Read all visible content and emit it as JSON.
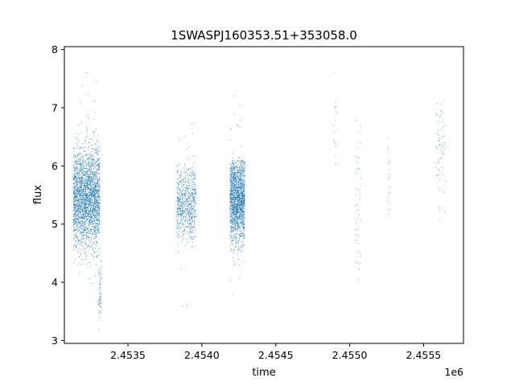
{
  "chart_data": {
    "type": "scatter",
    "title": "1SWASPJ160353.51+353058.0",
    "xlabel": "time",
    "ylabel": "flux",
    "x_offset_label": "1e6",
    "xlim": [
      2453070,
      2455770
    ],
    "ylim": [
      2.95,
      8.05
    ],
    "x_ticks": [
      2453500,
      2454000,
      2454500,
      2455000,
      2455500
    ],
    "x_tick_labels": [
      "2.4535",
      "2.4540",
      "2.4545",
      "2.4550",
      "2.4555"
    ],
    "y_ticks": [
      3,
      4,
      5,
      6,
      7,
      8
    ],
    "y_tick_labels": [
      "3",
      "4",
      "5",
      "6",
      "7",
      "8"
    ],
    "grid": false,
    "legend": "none",
    "marker_color": "#1f77b4",
    "clusters": [
      {
        "x_range": [
          2453130,
          2453310
        ],
        "n": 2600,
        "y_mean": 5.45,
        "y_sd": 0.42,
        "y_min": 4.3,
        "y_max": 6.6
      },
      {
        "x_range": [
          2453140,
          2453300
        ],
        "n": 120,
        "y_mean": 5.45,
        "y_sd": 0.85,
        "y_min": 3.9,
        "y_max": 7.75
      },
      {
        "x_range": [
          2453300,
          2453320
        ],
        "n": 70,
        "y_mean": 3.75,
        "y_sd": 0.3,
        "y_min": 3.15,
        "y_max": 4.5
      },
      {
        "x_range": [
          2453830,
          2453960
        ],
        "n": 750,
        "y_mean": 5.35,
        "y_sd": 0.32,
        "y_min": 4.6,
        "y_max": 6.1
      },
      {
        "x_range": [
          2453830,
          2453960
        ],
        "n": 50,
        "y_mean": 5.5,
        "y_sd": 0.7,
        "y_min": 3.15,
        "y_max": 7.3
      },
      {
        "x_range": [
          2454190,
          2454290
        ],
        "n": 1800,
        "y_mean": 5.45,
        "y_sd": 0.38,
        "y_min": 4.5,
        "y_max": 6.1
      },
      {
        "x_range": [
          2454190,
          2454300
        ],
        "n": 90,
        "y_mean": 5.5,
        "y_sd": 0.8,
        "y_min": 3.5,
        "y_max": 7.8
      },
      {
        "x_range": [
          2454890,
          2454910
        ],
        "n": 18,
        "y_mean": 6.5,
        "y_sd": 0.45,
        "y_min": 6.0,
        "y_max": 7.7
      },
      {
        "x_range": [
          2455040,
          2455075
        ],
        "n": 45,
        "y_mean": 5.4,
        "y_sd": 0.8,
        "y_min": 3.85,
        "y_max": 6.8
      },
      {
        "x_range": [
          2455255,
          2455275
        ],
        "n": 20,
        "y_mean": 5.8,
        "y_sd": 0.45,
        "y_min": 5.1,
        "y_max": 6.9
      },
      {
        "x_range": [
          2455580,
          2455650
        ],
        "n": 70,
        "y_mean": 6.25,
        "y_sd": 0.45,
        "y_min": 5.0,
        "y_max": 7.5
      }
    ]
  }
}
